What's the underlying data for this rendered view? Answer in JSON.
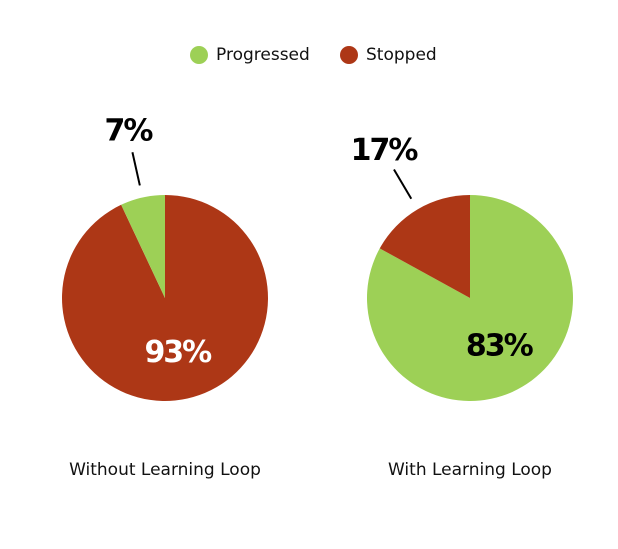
{
  "chart_data": [
    {
      "type": "pie",
      "title": "Without Learning Loop",
      "categories": [
        "Stopped",
        "Progressed"
      ],
      "values": [
        93,
        7
      ],
      "value_labels": [
        "93%",
        "7%"
      ],
      "colors": [
        "#ad3716",
        "#9dd056"
      ]
    },
    {
      "type": "pie",
      "title": "With Learning Loop",
      "categories": [
        "Progressed",
        "Stopped"
      ],
      "values": [
        83,
        17
      ],
      "value_labels": [
        "83%",
        "17%"
      ],
      "colors": [
        "#9dd056",
        "#ad3716"
      ]
    }
  ],
  "legend": [
    {
      "name": "Progressed",
      "color": "#9dd056"
    },
    {
      "name": "Stopped",
      "color": "#ad3716"
    }
  ]
}
